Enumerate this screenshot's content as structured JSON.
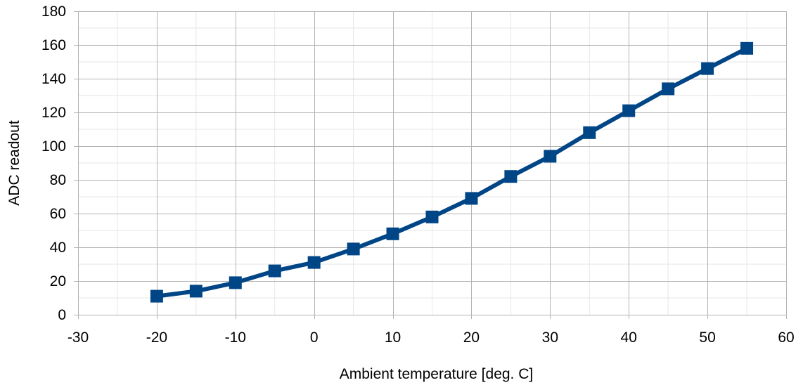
{
  "chart_data": {
    "type": "line",
    "title": "",
    "xlabel": "Ambient temperature [deg. C]",
    "ylabel": "ADC readout",
    "xlim": [
      -30,
      60
    ],
    "ylim": [
      0,
      180
    ],
    "x_major_ticks": [
      -30,
      -20,
      -10,
      0,
      10,
      20,
      30,
      40,
      50,
      60
    ],
    "y_major_ticks": [
      0,
      20,
      40,
      60,
      80,
      100,
      120,
      140,
      160,
      180
    ],
    "grid": true,
    "legend": "none",
    "series": [
      {
        "x": [
          -20,
          -15,
          -10,
          -5,
          0,
          5,
          10,
          15,
          20,
          25,
          30,
          35,
          40,
          45,
          50,
          55
        ],
        "y": [
          11,
          14,
          19,
          26,
          31,
          39,
          48,
          58,
          69,
          82,
          94,
          108,
          121,
          134,
          146,
          158
        ],
        "color": "#004586",
        "marker": "square"
      }
    ]
  }
}
